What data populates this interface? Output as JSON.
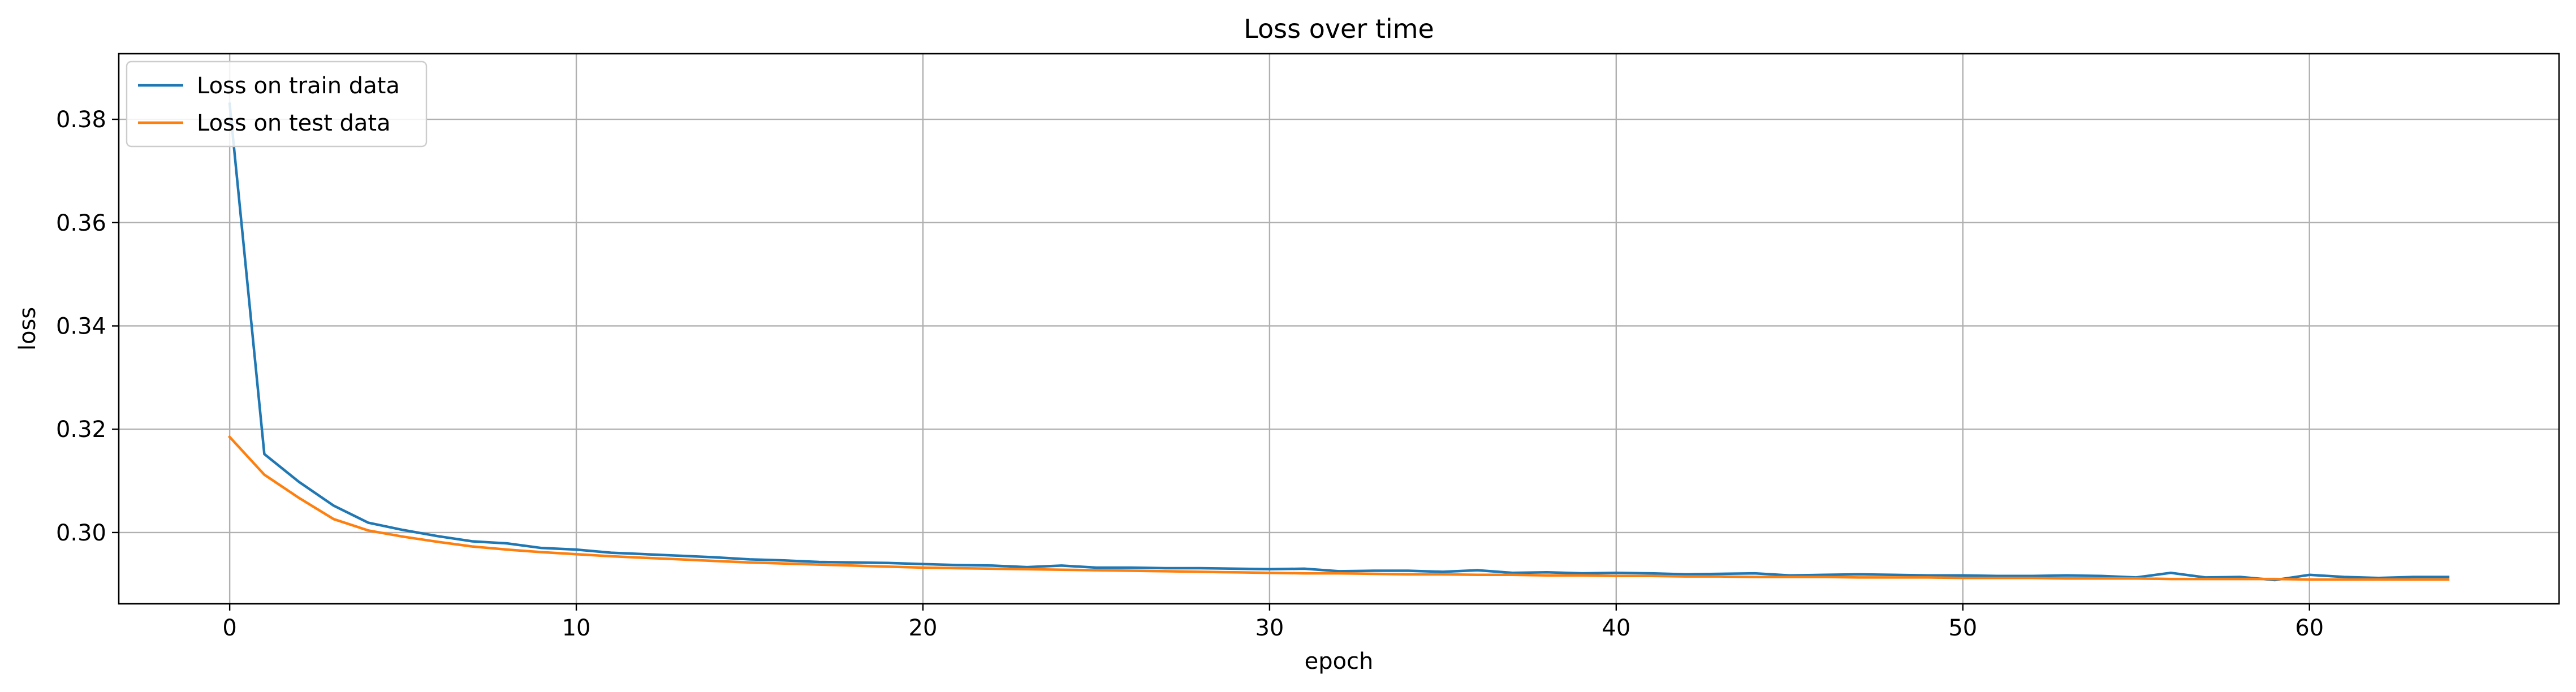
{
  "chart_data": {
    "type": "line",
    "title": "Loss over time",
    "xlabel": "epoch",
    "ylabel": "loss",
    "xlim": [
      -3.2,
      67.2
    ],
    "ylim": [
      0.2862,
      0.3927
    ],
    "xticks": [
      0,
      10,
      20,
      30,
      40,
      50,
      60
    ],
    "xtick_labels": [
      "0",
      "10",
      "20",
      "30",
      "40",
      "50",
      "60"
    ],
    "yticks": [
      0.3,
      0.32,
      0.34,
      0.36,
      0.38
    ],
    "ytick_labels": [
      "0.30",
      "0.32",
      "0.34",
      "0.36",
      "0.38"
    ],
    "grid": true,
    "legend_position": "upper-left",
    "x": [
      0,
      1,
      2,
      3,
      4,
      5,
      6,
      7,
      8,
      9,
      10,
      11,
      12,
      13,
      14,
      15,
      16,
      17,
      18,
      19,
      20,
      21,
      22,
      23,
      24,
      25,
      26,
      27,
      28,
      29,
      30,
      31,
      32,
      33,
      34,
      35,
      36,
      37,
      38,
      39,
      40,
      41,
      42,
      43,
      44,
      45,
      46,
      47,
      48,
      49,
      50,
      51,
      52,
      53,
      54,
      55,
      56,
      57,
      58,
      59,
      60,
      61,
      62,
      63,
      64
    ],
    "series": [
      {
        "name": "Loss on train data",
        "color": "#1f77b4",
        "values": [
          0.383,
          0.3152,
          0.3098,
          0.3052,
          0.3019,
          0.3005,
          0.2993,
          0.2983,
          0.2979,
          0.297,
          0.2967,
          0.2961,
          0.2958,
          0.2955,
          0.2952,
          0.2948,
          0.2946,
          0.2943,
          0.2942,
          0.2941,
          0.2939,
          0.2937,
          0.2936,
          0.2933,
          0.2936,
          0.2932,
          0.2932,
          0.2931,
          0.2931,
          0.293,
          0.2929,
          0.293,
          0.2925,
          0.2926,
          0.2926,
          0.2924,
          0.2927,
          0.2922,
          0.2923,
          0.2921,
          0.2922,
          0.2921,
          0.2919,
          0.292,
          0.2921,
          0.2917,
          0.2918,
          0.2919,
          0.2918,
          0.2917,
          0.2917,
          0.2916,
          0.2916,
          0.2917,
          0.2916,
          0.2913,
          0.2922,
          0.2913,
          0.2914,
          0.2908,
          0.2918,
          0.2914,
          0.2912,
          0.2914,
          0.2914
        ]
      },
      {
        "name": "Loss on test data",
        "color": "#ff7f0e",
        "values": [
          0.3185,
          0.3112,
          0.3067,
          0.3026,
          0.3004,
          0.2992,
          0.2982,
          0.2973,
          0.2967,
          0.2962,
          0.2958,
          0.2954,
          0.2951,
          0.2948,
          0.2945,
          0.2942,
          0.294,
          0.2938,
          0.2936,
          0.2934,
          0.2932,
          0.2931,
          0.293,
          0.2929,
          0.2928,
          0.2927,
          0.2926,
          0.2925,
          0.2924,
          0.2923,
          0.2922,
          0.2921,
          0.2921,
          0.292,
          0.2919,
          0.2919,
          0.2918,
          0.2918,
          0.2917,
          0.2917,
          0.2916,
          0.2916,
          0.2915,
          0.2915,
          0.2914,
          0.2914,
          0.2914,
          0.2913,
          0.2913,
          0.2913,
          0.2912,
          0.2912,
          0.2912,
          0.2911,
          0.2911,
          0.2911,
          0.291,
          0.291,
          0.291,
          0.291,
          0.2909,
          0.2909,
          0.2909,
          0.2909,
          0.2909
        ]
      }
    ]
  }
}
